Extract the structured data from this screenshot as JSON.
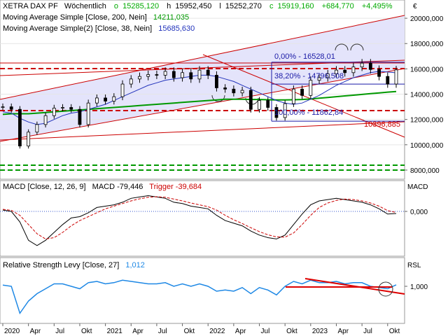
{
  "header": {
    "instrument": "XETRA DAX PF",
    "period": "Wöchentlich",
    "ohlc": [
      {
        "label": "o",
        "value": "15285,120"
      },
      {
        "label": "h",
        "value": "15952,450"
      },
      {
        "label": "l",
        "value": "15252,270"
      },
      {
        "label": "c",
        "value": "15919,160"
      }
    ],
    "change": "+684,770",
    "change_pct": "+4,495%",
    "sma200_label": "Moving Average Simple [Close, 200, Nein]",
    "sma200_value": "14211,035",
    "sma38_label": "Moving Average Simple(2) [Close, 38, Nein]",
    "sma38_value": "15685,630",
    "macd_label": "MACD [Close, 12, 26, 9]",
    "macd_text": "MACD -79,446",
    "trigger_text": "Trigger -39,684",
    "rsl_label": "Relative Strength Levy [Close, 27]",
    "rsl_value": "1,012"
  },
  "annotations": {
    "fib0": "0,00% - 16528,01",
    "fib38": "38,20% - 14796,508",
    "fib100": "100,00% - 11862,84",
    "trend_value": "10396,885"
  },
  "colors": {
    "price_up": "#000000",
    "sma200": "#009900",
    "sma38": "#2233bb",
    "channel": "#cc0000",
    "channel_fill": "#e4e4fb",
    "fib": "#1a1aa6",
    "macd": "#000000",
    "trigger": "#cc0000",
    "rsl": "#1e88e5",
    "rsl_trend": "#dd0000"
  },
  "chart_data": [
    {
      "type": "candlestick",
      "title": "XETRA DAX PF",
      "y_axis_unit": "€",
      "ylim": [
        7500,
        21000
      ],
      "yticks": [
        "8000,000",
        "10000,000",
        "12000,000",
        "14000,000",
        "16000,000",
        "18000,000",
        "20000,000"
      ],
      "xticks": [
        "2020",
        "Apr",
        "Jul",
        "Okt",
        "2021",
        "Apr",
        "Jul",
        "Okt",
        "2022",
        "Apr",
        "Jul",
        "Okt",
        "2023",
        "Apr",
        "Jul",
        "Okt"
      ],
      "x": [
        "2020-01",
        "2020-02",
        "2020-03",
        "2020-04",
        "2020-05",
        "2020-06",
        "2020-07",
        "2020-08",
        "2020-09",
        "2020-10",
        "2020-11",
        "2020-12",
        "2021-01",
        "2021-02",
        "2021-03",
        "2021-04",
        "2021-05",
        "2021-06",
        "2021-07",
        "2021-08",
        "2021-09",
        "2021-10",
        "2021-11",
        "2021-12",
        "2022-01",
        "2022-02",
        "2022-03",
        "2022-04",
        "2022-05",
        "2022-06",
        "2022-07",
        "2022-08",
        "2022-09",
        "2022-10",
        "2022-11",
        "2022-12",
        "2023-01",
        "2023-02",
        "2023-03",
        "2023-04",
        "2023-05",
        "2023-06",
        "2023-07",
        "2023-08",
        "2023-09",
        "2023-10",
        "2023-11"
      ],
      "close": [
        13000,
        12800,
        9900,
        11000,
        11600,
        12300,
        12900,
        12950,
        12800,
        11600,
        13300,
        13700,
        13450,
        13800,
        14800,
        15200,
        15400,
        15550,
        15500,
        15800,
        15300,
        15700,
        15200,
        15900,
        15500,
        14500,
        14400,
        14100,
        14300,
        12800,
        13500,
        12950,
        12150,
        13250,
        14400,
        13900,
        15100,
        15300,
        15600,
        15900,
        15700,
        16150,
        16450,
        15950,
        15400,
        14800,
        15919
      ],
      "series": [
        {
          "name": "Moving Average Simple [Close, 200, Nein]",
          "values": [
            12400,
            12450,
            12450,
            12450,
            12500,
            12550,
            12600,
            12650,
            12700,
            12750,
            12800,
            12850,
            12900,
            12950,
            13000,
            13050,
            13100,
            13150,
            13200,
            13250,
            13300,
            13350,
            13400,
            13450,
            13500,
            13550,
            13600,
            13600,
            13600,
            13580,
            13580,
            13560,
            13540,
            13540,
            13560,
            13580,
            13620,
            13680,
            13740,
            13800,
            13860,
            13920,
            13980,
            14040,
            14100,
            14160,
            14211
          ]
        },
        {
          "name": "Moving Average Simple(2) [Close, 38, Nein]",
          "values": [
            12600,
            12500,
            12100,
            11800,
            11600,
            11700,
            12000,
            12300,
            12500,
            12600,
            12800,
            13000,
            13200,
            13500,
            13800,
            14100,
            14400,
            14700,
            14900,
            15100,
            15200,
            15300,
            15400,
            15500,
            15500,
            15400,
            15200,
            15000,
            14700,
            14400,
            14100,
            13800,
            13500,
            13300,
            13200,
            13300,
            13600,
            13900,
            14300,
            14700,
            15000,
            15300,
            15500,
            15700,
            15800,
            15750,
            15686
          ]
        }
      ],
      "levels": [
        {
          "label": "0,00% - 16528,01",
          "value": 16528.01
        },
        {
          "label": "38,20% - 14796,508",
          "value": 14796.508
        },
        {
          "label": "100,00% - 11862,84",
          "value": 11862.84
        },
        {
          "label": "10396,885",
          "value": 10396.885
        }
      ]
    },
    {
      "type": "line",
      "title": "MACD [Close, 12, 26, 9]",
      "ylim": [
        -1600,
        800
      ],
      "yticks": [
        "0,000"
      ],
      "series": [
        {
          "name": "MACD",
          "values": [
            50,
            0,
            -400,
            -1100,
            -1300,
            -1100,
            -800,
            -500,
            -250,
            -200,
            -50,
            150,
            200,
            250,
            350,
            500,
            550,
            600,
            550,
            500,
            350,
            300,
            200,
            150,
            100,
            -150,
            -350,
            -450,
            -550,
            -750,
            -900,
            -1000,
            -1050,
            -900,
            -500,
            -100,
            250,
            400,
            450,
            500,
            450,
            400,
            350,
            250,
            100,
            -100,
            -79
          ]
        },
        {
          "name": "Trigger",
          "values": [
            80,
            40,
            -150,
            -500,
            -850,
            -1050,
            -1000,
            -800,
            -550,
            -350,
            -200,
            -50,
            100,
            200,
            300,
            400,
            480,
            540,
            560,
            540,
            470,
            400,
            320,
            250,
            180,
            50,
            -150,
            -320,
            -460,
            -620,
            -770,
            -890,
            -970,
            -980,
            -820,
            -500,
            -150,
            150,
            320,
            420,
            470,
            450,
            400,
            320,
            200,
            30,
            -40
          ]
        }
      ]
    },
    {
      "type": "line",
      "title": "Relative Strength Levy [Close, 27]",
      "ylim": [
        0.72,
        1.12
      ],
      "yticks": [
        "1,000"
      ],
      "series": [
        {
          "name": "Relative Strength Levy [Close, 27]",
          "values": [
            1.01,
            1.0,
            0.78,
            0.88,
            0.94,
            0.98,
            1.02,
            1.02,
            1.0,
            0.98,
            1.03,
            1.04,
            1.02,
            1.03,
            1.05,
            1.04,
            1.03,
            1.02,
            1.02,
            1.03,
            1.0,
            1.02,
            1.0,
            1.02,
            1.0,
            0.96,
            0.97,
            0.96,
            0.99,
            0.94,
            0.99,
            0.97,
            0.93,
            1.0,
            1.04,
            1.02,
            1.05,
            1.03,
            1.03,
            1.04,
            1.02,
            1.03,
            1.03,
            1.0,
            0.99,
            0.98,
            1.012
          ]
        }
      ]
    }
  ]
}
